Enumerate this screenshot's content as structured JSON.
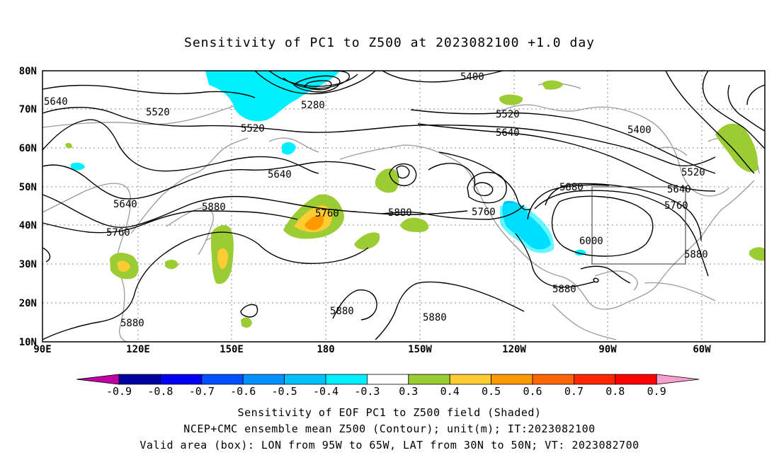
{
  "title": "Sensitivity of PC1 to Z500 at 2023082100 +1.0 day",
  "map": {
    "lat_labels": [
      "80N",
      "70N",
      "60N",
      "50N",
      "40N",
      "30N",
      "20N",
      "10N"
    ],
    "lon_labels": [
      "90E",
      "120E",
      "150E",
      "180",
      "150W",
      "120W",
      "90W",
      "60W"
    ],
    "contour_labels": [
      "5640",
      "5520",
      "5520",
      "5280",
      "5400",
      "5520",
      "5640",
      "5400",
      "5640",
      "5640",
      "5520",
      "5640",
      "5760",
      "5880",
      "5880",
      "5760",
      "5880",
      "5760",
      "6000",
      "5880",
      "5760",
      "5880",
      "5880",
      "5880",
      "5880"
    ],
    "valid_area_box": {
      "lon_from": "95W",
      "lon_to": "65W",
      "lat_from": "30N",
      "lat_to": "50N"
    }
  },
  "colorbar": {
    "labels": [
      "-0.9",
      "-0.8",
      "-0.7",
      "-0.6",
      "-0.5",
      "-0.4",
      "-0.3",
      "0.3",
      "0.4",
      "0.5",
      "0.6",
      "0.7",
      "0.8",
      "0.9"
    ],
    "colors": [
      "#c000a0",
      "#0000a0",
      "#0000f0",
      "#0050ff",
      "#0090ff",
      "#00c0ff",
      "#00f0ff",
      "#ffffff",
      "#9ccc34",
      "#ffcc33",
      "#ff9900",
      "#ff6600",
      "#ff2600",
      "#ff0000",
      "#f7a0d0"
    ]
  },
  "footer": [
    "Sensitivity of EOF PC1 to Z500 field (Shaded)",
    "NCEP+CMC ensemble mean Z500 (Contour); unit(m); IT:2023082100",
    "Valid area (box): LON from 95W to 65W, LAT from 30N to 50N; VT: 2023082700"
  ]
}
